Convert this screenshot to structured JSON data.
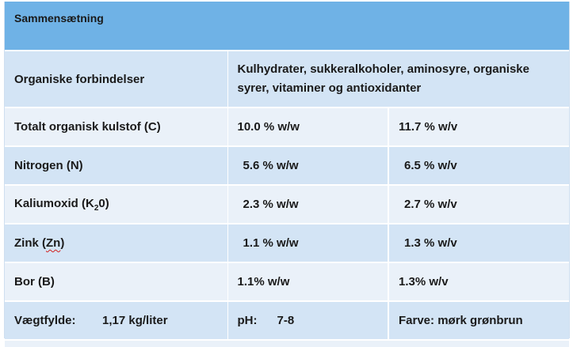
{
  "header": {
    "title": "Sammensætning"
  },
  "rows": [
    {
      "label": "Organiske forbindelser",
      "value": "Kulhydrater, sukkeralkoholer, aminosyre, organiske syrer, vitaminer og antioxidanter"
    },
    {
      "label": "Totalt organisk kulstof (C)",
      "ww": "10.0 % w/w",
      "wv": "11.7 % w/v"
    },
    {
      "label": "Nitrogen (N)",
      "ww": "5.6 % w/w",
      "wv": "6.5 % w/v"
    },
    {
      "label_pre": "Kaliumoxid (K",
      "label_sub": "2",
      "label_post": "0)",
      "ww": "2.3 % w/w",
      "wv": "2.7 % w/v"
    },
    {
      "label_pre": "Zink (",
      "label_mid": "Zn",
      "label_post": ")",
      "ww": "1.1 % w/w",
      "wv": "1.3 % w/v"
    },
    {
      "label": "Bor (B)",
      "ww": "1.1% w/w",
      "wv": "1.3% w/v"
    }
  ],
  "footer": {
    "density_label": "Vægtfylde:",
    "density_value": "1,17 kg/liter",
    "ph_label": "pH:",
    "ph_value": "7-8",
    "color": "Farve: mørk grønbrun"
  }
}
